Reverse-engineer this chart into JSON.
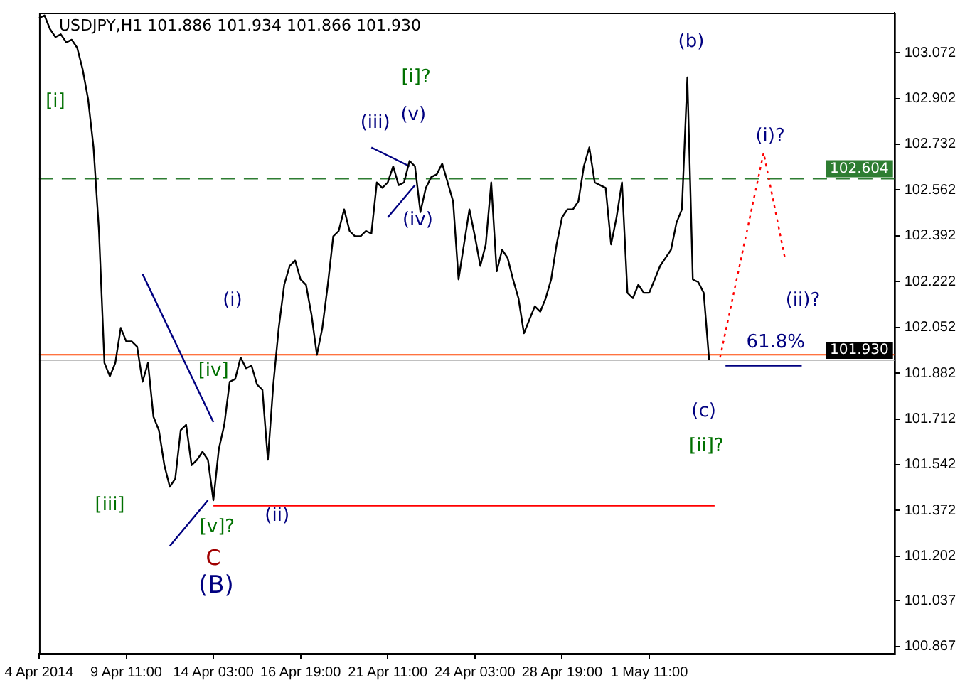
{
  "chart_data": {
    "type": "line",
    "title": "USDJPY,H1 101.886 101.934 101.866 101.930",
    "categories": [
      "4 Apr 2014",
      null,
      null,
      null,
      null,
      null,
      null,
      null,
      null,
      null,
      null,
      null,
      null,
      null,
      null,
      null,
      "9 Apr 11:00",
      null,
      null,
      null,
      null,
      null,
      null,
      null,
      null,
      null,
      null,
      null,
      null,
      null,
      null,
      null,
      "14 Apr 03:00",
      null,
      null,
      null,
      null,
      null,
      null,
      null,
      null,
      null,
      null,
      null,
      null,
      null,
      null,
      null,
      "16 Apr 19:00",
      null,
      null,
      null,
      null,
      null,
      null,
      null,
      null,
      null,
      null,
      null,
      null,
      null,
      null,
      null,
      "21 Apr 11:00",
      null,
      null,
      null,
      null,
      null,
      null,
      null,
      null,
      null,
      null,
      null,
      null,
      null,
      null,
      null,
      "24 Apr 03:00",
      null,
      null,
      null,
      null,
      null,
      null,
      null,
      null,
      null,
      null,
      null,
      null,
      null,
      null,
      null,
      "28 Apr 19:00",
      null,
      null,
      null,
      null,
      null,
      null,
      null,
      null,
      null,
      null,
      null,
      null,
      null,
      null,
      null,
      "1 May 11:00",
      null,
      null,
      null,
      null,
      null,
      null,
      null,
      null,
      null,
      null,
      null,
      null,
      null,
      null,
      null,
      null,
      null,
      null,
      null,
      null,
      null,
      null,
      null,
      null,
      null,
      null,
      null,
      null,
      null,
      null,
      null,
      null,
      null,
      null,
      null,
      null,
      null,
      null,
      null,
      null,
      null,
      null,
      null,
      null,
      null
    ],
    "series": [
      {
        "color": "#000000",
        "values": [
          103.2,
          103.21,
          103.16,
          103.13,
          103.14,
          103.11,
          103.12,
          103.09,
          103.01,
          102.9,
          102.72,
          102.41,
          101.92,
          101.87,
          101.92,
          102.05,
          102.0,
          102.0,
          101.98,
          101.85,
          101.92,
          101.72,
          101.67,
          101.54,
          101.46,
          101.49,
          101.67,
          101.69,
          101.54,
          101.56,
          101.59,
          101.56,
          101.41,
          101.6,
          101.69,
          101.85,
          101.86,
          101.94,
          101.9,
          101.91,
          101.84,
          101.82,
          101.56,
          101.84,
          102.05,
          102.21,
          102.28,
          102.3,
          102.23,
          102.21,
          102.1,
          101.95,
          102.05,
          102.21,
          102.39,
          102.41,
          102.49,
          102.41,
          102.39,
          102.39,
          102.41,
          102.4,
          102.59,
          102.57,
          102.59,
          102.65,
          102.58,
          102.59,
          102.67,
          102.65,
          102.48,
          102.57,
          102.61,
          102.62,
          102.66,
          102.59,
          102.52,
          102.23,
          102.36,
          102.49,
          102.39,
          102.28,
          102.36,
          102.59,
          102.26,
          102.34,
          102.31,
          102.23,
          102.16,
          102.03,
          102.08,
          102.13,
          102.11,
          102.16,
          102.23,
          102.36,
          102.46,
          102.49,
          102.49,
          102.52,
          102.65,
          102.72,
          102.59,
          102.58,
          102.57,
          102.36,
          102.46,
          102.59,
          102.18,
          102.16,
          102.21,
          102.18,
          102.18,
          102.23,
          102.28,
          102.31,
          102.34,
          102.44,
          102.49,
          102.98,
          102.23,
          102.22,
          102.18,
          101.93,
          null,
          null,
          null,
          null,
          null,
          null,
          null,
          null,
          null,
          null,
          null,
          null,
          null,
          null,
          null,
          null,
          null,
          null,
          null,
          null,
          null,
          null,
          null,
          null,
          null,
          null,
          null,
          null,
          null,
          null,
          null,
          null,
          null,
          null
        ]
      },
      {
        "color": "#ff0000",
        "values": [
          null,
          null,
          null,
          null,
          null,
          null,
          null,
          null,
          null,
          null,
          null,
          null,
          null,
          null,
          null,
          null,
          null,
          null,
          null,
          null,
          null,
          null,
          null,
          null,
          null,
          null,
          null,
          null,
          null,
          null,
          null,
          null,
          101.39,
          null,
          null,
          null,
          null,
          null,
          null,
          null,
          null,
          null,
          null,
          null,
          null,
          null,
          null,
          null,
          null,
          null,
          null,
          null,
          null,
          null,
          null,
          null,
          null,
          null,
          null,
          null,
          null,
          null,
          null,
          null,
          null,
          null,
          null,
          null,
          null,
          null,
          null,
          null,
          null,
          null,
          null,
          null,
          null,
          null,
          null,
          null,
          null,
          null,
          null,
          null,
          null,
          null,
          null,
          null,
          null,
          null,
          null,
          null,
          null,
          null,
          null,
          null,
          null,
          null,
          null,
          null,
          null,
          null,
          null,
          null,
          null,
          null,
          null,
          null,
          null,
          null,
          null,
          null,
          null,
          null,
          null,
          null,
          null,
          null,
          null,
          null,
          null,
          null,
          null,
          null,
          101.39,
          null,
          null,
          null,
          null,
          null,
          null,
          null,
          null,
          null,
          null,
          null,
          null,
          null,
          null,
          null,
          null,
          null,
          null,
          null,
          null,
          null,
          null,
          null,
          null,
          null,
          null,
          null,
          null,
          null,
          null,
          null,
          null,
          null
        ]
      },
      {
        "color": "#000080",
        "values": [
          null,
          null,
          null,
          null,
          null,
          null,
          null,
          null,
          null,
          null,
          null,
          null,
          null,
          null,
          null,
          null,
          null,
          null,
          null,
          102.25,
          null,
          null,
          null,
          null,
          null,
          null,
          null,
          null,
          null,
          null,
          null,
          null,
          101.7,
          null,
          null,
          null,
          null,
          null,
          null,
          null,
          null,
          null,
          null,
          null,
          null,
          null,
          null,
          null,
          null,
          null,
          null,
          null,
          null,
          null,
          null,
          null,
          null,
          null,
          null,
          null,
          null,
          null,
          null,
          null,
          null,
          null,
          null,
          null,
          null,
          null,
          null,
          null,
          null,
          null,
          null,
          null,
          null,
          null,
          null,
          null,
          null,
          null,
          null,
          null,
          null,
          null,
          null,
          null,
          null,
          null,
          null,
          null,
          null,
          null,
          null,
          null,
          null,
          null,
          null,
          null,
          null,
          null,
          null,
          null,
          null,
          null,
          null,
          null,
          null,
          null,
          null,
          null,
          null,
          null,
          null,
          null,
          null,
          null,
          null,
          null,
          null,
          null,
          null,
          null,
          null,
          null,
          null,
          null,
          null,
          null,
          null,
          null,
          null,
          null,
          null,
          null,
          null,
          null,
          null,
          null,
          null,
          null,
          null,
          null,
          null,
          null,
          null,
          null,
          null,
          null,
          null,
          null,
          null,
          null,
          null,
          null,
          null,
          null
        ]
      },
      {
        "color": "#000080",
        "values": [
          null,
          null,
          null,
          null,
          null,
          null,
          null,
          null,
          null,
          null,
          null,
          null,
          null,
          null,
          null,
          null,
          null,
          null,
          null,
          null,
          null,
          null,
          null,
          null,
          101.24,
          null,
          null,
          null,
          null,
          null,
          null,
          101.41,
          null,
          null,
          null,
          null,
          null,
          null,
          null,
          null,
          null,
          null,
          null,
          null,
          null,
          null,
          null,
          null,
          null,
          null,
          null,
          null,
          null,
          null,
          null,
          null,
          null,
          null,
          null,
          null,
          null,
          null,
          null,
          null,
          null,
          null,
          null,
          null,
          null,
          null,
          null,
          null,
          null,
          null,
          null,
          null,
          null,
          null,
          null,
          null,
          null,
          null,
          null,
          null,
          null,
          null,
          null,
          null,
          null,
          null,
          null,
          null,
          null,
          null,
          null,
          null,
          null,
          null,
          null,
          null,
          null,
          null,
          null,
          null,
          null,
          null,
          null,
          null,
          null,
          null,
          null,
          null,
          null,
          null,
          null,
          null,
          null,
          null,
          null,
          null,
          null,
          null,
          null,
          null,
          null,
          null,
          null,
          null,
          null,
          null,
          null,
          null,
          null,
          null,
          null,
          null,
          null,
          null,
          null,
          null,
          null,
          null,
          null,
          null,
          null,
          null,
          null,
          null,
          null,
          null,
          null,
          null,
          null,
          null,
          null,
          null,
          null,
          null
        ]
      },
      {
        "color": "#000080",
        "values": [
          null,
          null,
          null,
          null,
          null,
          null,
          null,
          null,
          null,
          null,
          null,
          null,
          null,
          null,
          null,
          null,
          null,
          null,
          null,
          null,
          null,
          null,
          null,
          null,
          null,
          null,
          null,
          null,
          null,
          null,
          null,
          null,
          null,
          null,
          null,
          null,
          null,
          null,
          null,
          null,
          null,
          null,
          null,
          null,
          null,
          null,
          null,
          null,
          null,
          null,
          null,
          null,
          null,
          null,
          null,
          null,
          null,
          null,
          null,
          null,
          null,
          102.72,
          null,
          null,
          null,
          null,
          null,
          null,
          102.65,
          null,
          null,
          null,
          null,
          null,
          null,
          null,
          null,
          null,
          null,
          null,
          null,
          null,
          null,
          null,
          null,
          null,
          null,
          null,
          null,
          null,
          null,
          null,
          null,
          null,
          null,
          null,
          null,
          null,
          null,
          null,
          null,
          null,
          null,
          null,
          null,
          null,
          null,
          null,
          null,
          null,
          null,
          null,
          null,
          null,
          null,
          null,
          null,
          null,
          null,
          null,
          null,
          null,
          null,
          null,
          null,
          null,
          null,
          null,
          null,
          null,
          null,
          null,
          null,
          null,
          null,
          null,
          null,
          null,
          null,
          null,
          null,
          null,
          null,
          null,
          null,
          null,
          null,
          null,
          null,
          null,
          null,
          null,
          null,
          null,
          null,
          null,
          null,
          null
        ]
      },
      {
        "color": "#000080",
        "values": [
          null,
          null,
          null,
          null,
          null,
          null,
          null,
          null,
          null,
          null,
          null,
          null,
          null,
          null,
          null,
          null,
          null,
          null,
          null,
          null,
          null,
          null,
          null,
          null,
          null,
          null,
          null,
          null,
          null,
          null,
          null,
          null,
          null,
          null,
          null,
          null,
          null,
          null,
          null,
          null,
          null,
          null,
          null,
          null,
          null,
          null,
          null,
          null,
          null,
          null,
          null,
          null,
          null,
          null,
          null,
          null,
          null,
          null,
          null,
          null,
          null,
          null,
          null,
          null,
          102.46,
          null,
          null,
          null,
          null,
          102.58,
          null,
          null,
          null,
          null,
          null,
          null,
          null,
          null,
          null,
          null,
          null,
          null,
          null,
          null,
          null,
          null,
          null,
          null,
          null,
          null,
          null,
          null,
          null,
          null,
          null,
          null,
          null,
          null,
          null,
          null,
          null,
          null,
          null,
          null,
          null,
          null,
          null,
          null,
          null,
          null,
          null,
          null,
          null,
          null,
          null,
          null,
          null,
          null,
          null,
          null,
          null,
          null,
          null,
          null,
          null,
          null,
          null,
          null,
          null,
          null,
          null,
          null,
          null,
          null,
          null,
          null,
          null,
          null,
          null,
          null,
          null,
          null,
          null,
          null,
          null,
          null,
          null,
          null,
          null,
          null,
          null,
          null,
          null,
          null,
          null,
          null,
          null,
          null
        ]
      },
      {
        "color": "#ff0000",
        "line_style": "dotted",
        "values": [
          null,
          null,
          null,
          null,
          null,
          null,
          null,
          null,
          null,
          null,
          null,
          null,
          null,
          null,
          null,
          null,
          null,
          null,
          null,
          null,
          null,
          null,
          null,
          null,
          null,
          null,
          null,
          null,
          null,
          null,
          null,
          null,
          null,
          null,
          null,
          null,
          null,
          null,
          null,
          null,
          null,
          null,
          null,
          null,
          null,
          null,
          null,
          null,
          null,
          null,
          null,
          null,
          null,
          null,
          null,
          null,
          null,
          null,
          null,
          null,
          null,
          null,
          null,
          null,
          null,
          null,
          null,
          null,
          null,
          null,
          null,
          null,
          null,
          null,
          null,
          null,
          null,
          null,
          null,
          null,
          null,
          null,
          null,
          null,
          null,
          null,
          null,
          null,
          null,
          null,
          null,
          null,
          null,
          null,
          null,
          null,
          null,
          null,
          null,
          null,
          null,
          null,
          null,
          null,
          null,
          null,
          null,
          null,
          null,
          null,
          null,
          null,
          null,
          null,
          null,
          null,
          null,
          null,
          null,
          null,
          null,
          null,
          null,
          null,
          null,
          101.94,
          null,
          null,
          null,
          null,
          null,
          null,
          null,
          102.7,
          null,
          null,
          null,
          102.3,
          null,
          null,
          null,
          null,
          null,
          null,
          null,
          null,
          null,
          null,
          null,
          null,
          null,
          null,
          null,
          null,
          null,
          null,
          null,
          null
        ]
      },
      {
        "color": "#000080",
        "values": [
          null,
          null,
          null,
          null,
          null,
          null,
          null,
          null,
          null,
          null,
          null,
          null,
          null,
          null,
          null,
          null,
          null,
          null,
          null,
          null,
          null,
          null,
          null,
          null,
          null,
          null,
          null,
          null,
          null,
          null,
          null,
          null,
          null,
          null,
          null,
          null,
          null,
          null,
          null,
          null,
          null,
          null,
          null,
          null,
          null,
          null,
          null,
          null,
          null,
          null,
          null,
          null,
          null,
          null,
          null,
          null,
          null,
          null,
          null,
          null,
          null,
          null,
          null,
          null,
          null,
          null,
          null,
          null,
          null,
          null,
          null,
          null,
          null,
          null,
          null,
          null,
          null,
          null,
          null,
          null,
          null,
          null,
          null,
          null,
          null,
          null,
          null,
          null,
          null,
          null,
          null,
          null,
          null,
          null,
          null,
          null,
          null,
          null,
          null,
          null,
          null,
          null,
          null,
          null,
          null,
          null,
          null,
          null,
          null,
          null,
          null,
          null,
          null,
          null,
          null,
          null,
          null,
          null,
          null,
          null,
          null,
          null,
          null,
          null,
          null,
          null,
          101.91,
          null,
          null,
          null,
          null,
          null,
          null,
          null,
          null,
          null,
          null,
          null,
          null,
          null,
          101.91,
          null,
          null,
          null,
          null,
          null,
          null,
          null,
          null,
          null,
          null,
          null,
          null,
          null,
          null,
          null,
          null,
          null
        ]
      }
    ],
    "ylim": [
      100.84,
      103.22
    ],
    "yticks": [
      100.867,
      101.037,
      101.202,
      101.372,
      101.542,
      101.712,
      101.882,
      102.052,
      102.222,
      102.392,
      102.562,
      102.732,
      102.902,
      103.072
    ],
    "ref_lines": [
      {
        "axis": "y",
        "value": 102.604,
        "label": "102.604",
        "color": "#2e7d32",
        "line_style": "dashed"
      },
      {
        "axis": "y",
        "value": 101.95,
        "color": "#ff4500"
      },
      {
        "axis": "y",
        "value": 101.93,
        "label": "101.930",
        "color": "#c0c0c0"
      }
    ],
    "annotations": [
      "[i]",
      "[iii]",
      "[iv]",
      "[v]?",
      "C",
      "(B)",
      "(i)",
      "(ii)",
      "(iii)",
      "(v)",
      "[i]?",
      "(iv)",
      "(b)",
      "(c)",
      "[ii]?",
      "(i)?",
      "(ii)?",
      "61.8%"
    ],
    "grid": false,
    "legend": false,
    "marker": "none"
  }
}
